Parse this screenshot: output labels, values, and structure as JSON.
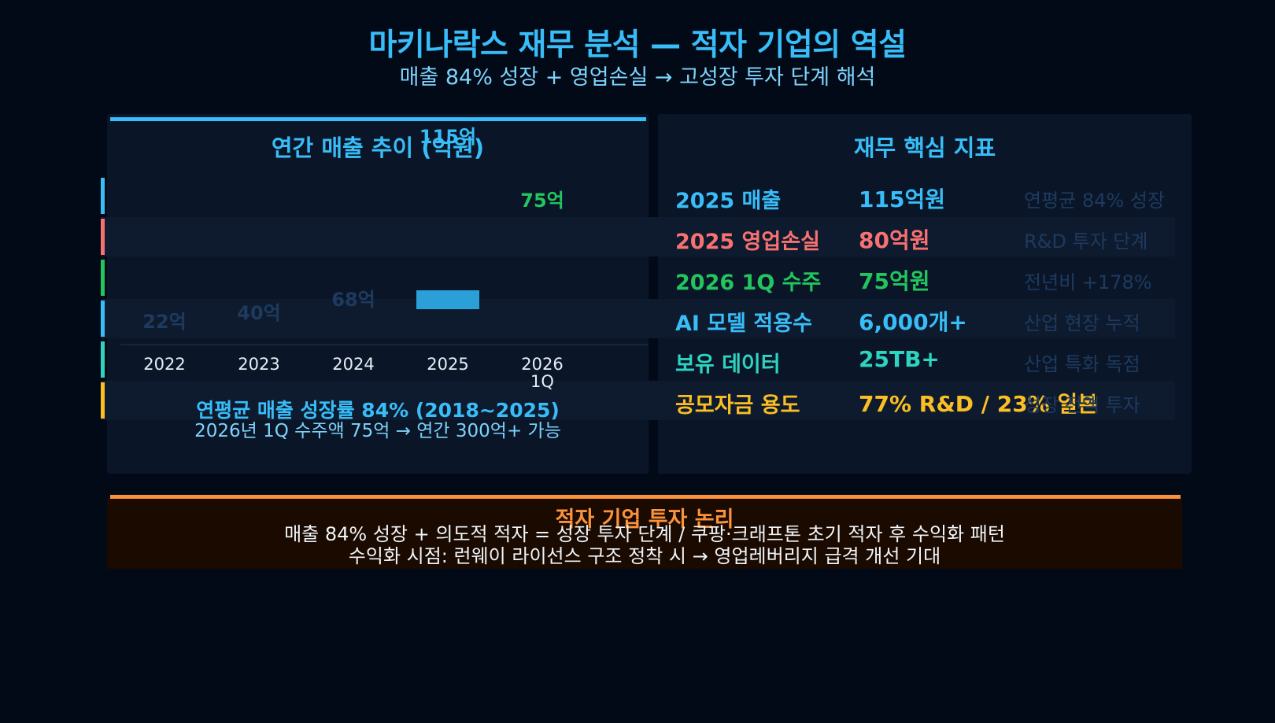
{
  "header": {
    "title": "마키나락스 재무 분석 — 적자 기업의 역설",
    "subtitle": "매출 84% 성장 + 영업손실 → 고성장 투자 단계 해석"
  },
  "chart_data": {
    "type": "bar",
    "title": "연간 매출 추이 (억원)",
    "categories": [
      "2022",
      "2023",
      "2024",
      "2025",
      "2026 1Q"
    ],
    "values": [
      22,
      40,
      68,
      115,
      75
    ],
    "data_labels": [
      "22억",
      "40억",
      "68억",
      "115억",
      "75억"
    ],
    "ylim": [
      0,
      120
    ],
    "grid": false,
    "legend": "none",
    "colors": {
      "bar": "#2a9fd8",
      "bar_faded": "#0f2238",
      "label": "#1e3a5f",
      "highlight_label": "#22c55e"
    }
  },
  "chart_summary": {
    "line1": "연평균 매출 성장률 84% (2018~2025)",
    "line2": "2026년 1Q 수주액 75억 → 연간 300억+ 가능"
  },
  "metrics": {
    "title": "재무 핵심 지표",
    "rows": [
      {
        "label": "2025 매출",
        "value": "115억원",
        "note": "연평균 84% 성장",
        "color": "#38bdf8"
      },
      {
        "label": "2025 영업손실",
        "value": "80억원",
        "note": "R&D 투자 단계",
        "color": "#f87171"
      },
      {
        "label": "2026 1Q 수주",
        "value": "75억원",
        "note": "전년비 +178%",
        "color": "#22c55e"
      },
      {
        "label": "AI 모델 적용수",
        "value": "6,000개+",
        "note": "산업 현장 누적",
        "color": "#38bdf8"
      },
      {
        "label": "보유 데이터",
        "value": "25TB+",
        "note": "산업 특화 독점",
        "color": "#2dd4bf"
      },
      {
        "label": "공모자금 용도",
        "value": "77% R&D / 23% 일본",
        "note": "성장 전액 투자",
        "color": "#fbbf24"
      }
    ]
  },
  "bottom": {
    "title": "적자 기업 투자 논리",
    "line1": "매출 84% 성장 + 의도적 적자 = 성장 투자 단계 / 쿠팡·크래프톤 초기 적자 후 수익화 패턴",
    "line2": "수익화 시점: 런웨이 라이선스 구조 정착 시 → 영업레버리지 급격 개선 기대"
  }
}
